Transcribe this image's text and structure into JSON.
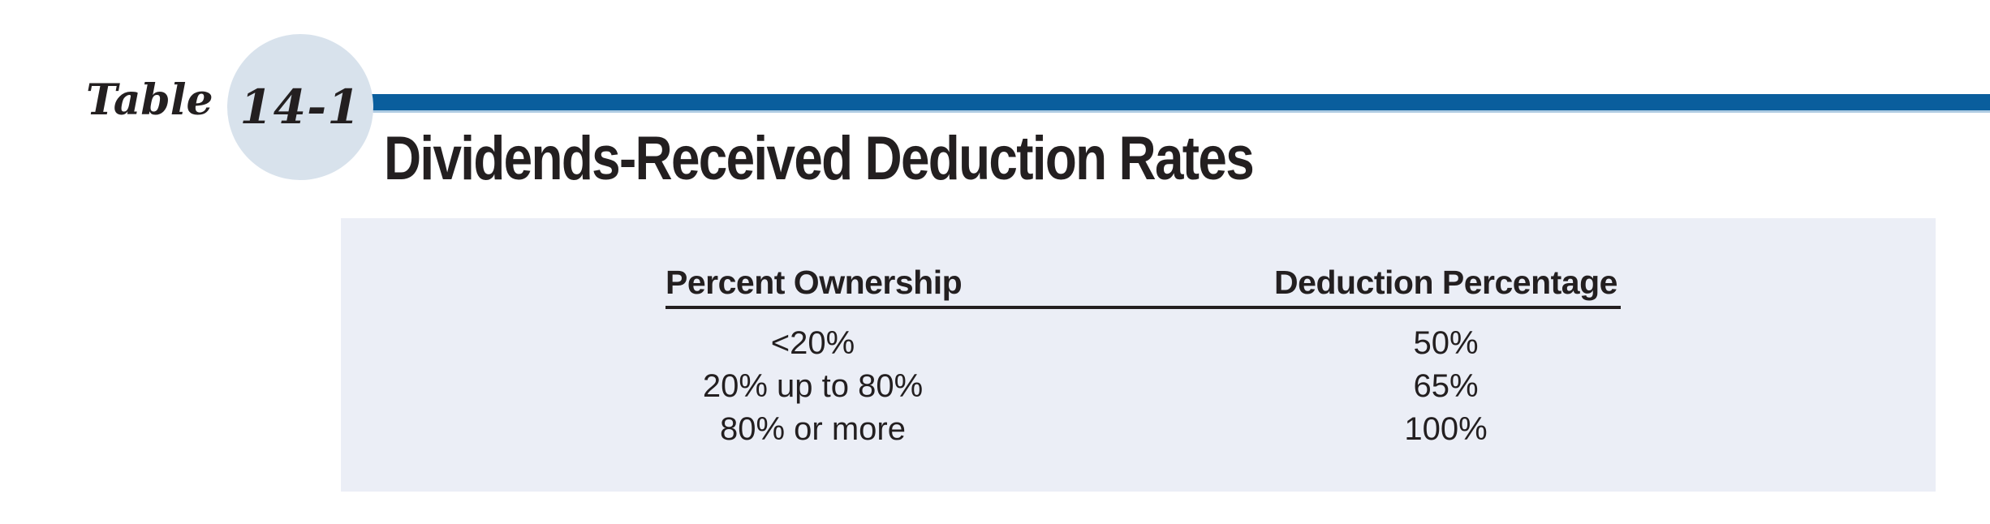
{
  "header": {
    "label_word": "Table",
    "table_number": "14-1",
    "title": "Dividends-Received Deduction Rates"
  },
  "table": {
    "columns": [
      "Percent Ownership",
      "Deduction Percentage"
    ],
    "rows": [
      {
        "ownership": "<20%",
        "deduction": "50%"
      },
      {
        "ownership": "20% up to 80%",
        "deduction": "65%"
      },
      {
        "ownership": "80% or more",
        "deduction": "100%"
      }
    ]
  },
  "colors": {
    "accent_bar": "#0a5e9d",
    "accent_bar_underline": "#aecbe2",
    "badge_circle": "#d8e2ec",
    "panel_background": "#ebeef6",
    "ink": "#231f20"
  }
}
